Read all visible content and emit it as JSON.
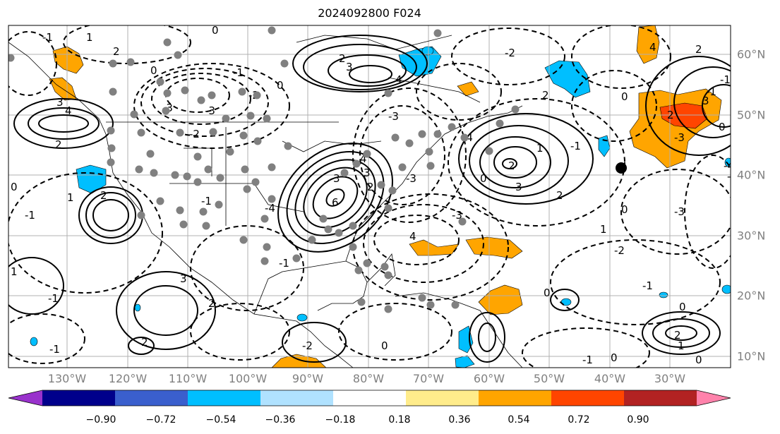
{
  "title": "2024092800 F024",
  "lon_labels": [
    "130°W",
    "120°W",
    "110°W",
    "100°W",
    "90°W",
    "80°W",
    "70°W",
    "60°W",
    "50°W",
    "40°W",
    "30°W"
  ],
  "lat_labels": [
    "60°N",
    "50°N",
    "40°N",
    "30°N",
    "20°N",
    "10°N"
  ],
  "colorbar": {
    "ticks": [
      "−0.90",
      "−0.72",
      "−0.54",
      "−0.36",
      "−0.18",
      "0.18",
      "0.36",
      "0.54",
      "0.72",
      "0.90"
    ],
    "colors": [
      "#9932cc",
      "#00008b",
      "#3a5fcd",
      "#00bfff",
      "#b0e2ff",
      "#ffffff",
      "#ffec8b",
      "#ffa500",
      "#ff4500",
      "#b22222",
      "#ff82ab"
    ]
  },
  "contour_labels": [
    "2",
    "3",
    "4",
    "2",
    "0",
    "-2",
    "-1",
    "0",
    "1",
    "2",
    "-3",
    "-2",
    "-1",
    "0",
    "4",
    "3",
    "2",
    "-2",
    "-3",
    "-4",
    "-3",
    "0",
    "2",
    "3",
    "1",
    "2",
    "-1",
    "0",
    "-1",
    "2",
    "-1",
    "0",
    "4",
    "3",
    "2",
    "-3",
    "-4",
    "-1",
    "0",
    "1",
    "-2",
    "-3",
    "-1",
    "-1",
    "0",
    "0",
    "0",
    "1",
    "2",
    "0",
    "1",
    "-1",
    "0",
    "-1",
    "-1",
    "2",
    "3",
    "6",
    "4",
    "3",
    "2",
    "3",
    "2",
    "4",
    "-3",
    "-4",
    "2",
    "0",
    "-1",
    "-2",
    "-1",
    "1",
    "-3"
  ],
  "marker": "black-dot"
}
